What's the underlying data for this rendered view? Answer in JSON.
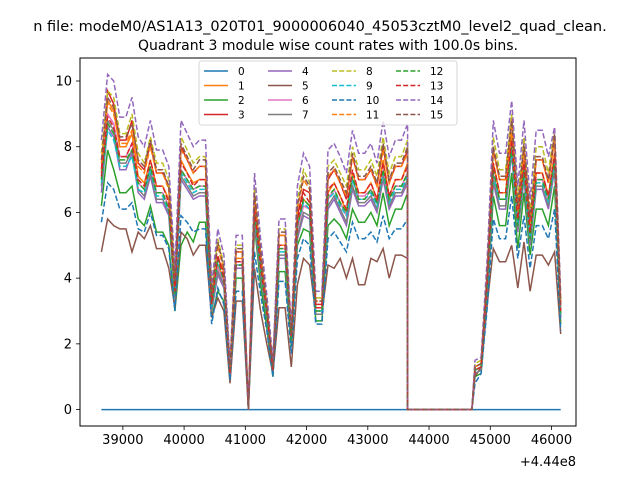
{
  "chart_data": {
    "type": "line",
    "suptitle": "n file: modeM0/AS1A13_020T01_9000006040_45053cztM0_level2_quad_clean.",
    "title": "Quadrant 3 module wise count rates with 100.0s bins.",
    "xlabel": "",
    "ylabel": "",
    "offset_text": "+4.44e8",
    "xlim": [
      38300,
      46400
    ],
    "ylim": [
      -0.5,
      10.7
    ],
    "x_ticks": [
      39000,
      40000,
      41000,
      42000,
      43000,
      44000,
      45000,
      46000
    ],
    "y_ticks": [
      0,
      2,
      4,
      6,
      8,
      10
    ],
    "grid": false,
    "legend_position": "top-center",
    "legend_columns": 4,
    "segments": [
      [
        38650,
        43600
      ],
      [
        44750,
        46100
      ]
    ],
    "series": [
      {
        "name": "0",
        "color": "#1f77b4",
        "dash": "solid",
        "values": [
          0,
          0,
          0,
          0,
          0,
          0,
          0,
          0,
          0,
          0,
          0,
          0,
          0,
          0,
          0,
          0,
          0,
          0,
          0,
          0,
          0,
          0,
          0,
          0,
          0,
          0,
          0,
          0,
          0,
          0,
          0,
          0,
          0,
          0,
          0,
          0,
          0,
          0,
          0,
          0,
          0,
          0,
          0,
          0,
          0,
          0,
          0,
          0,
          0,
          0,
          0,
          0,
          0,
          0,
          0,
          0,
          0,
          0,
          0,
          0,
          0,
          0,
          0,
          0,
          0
        ]
      },
      {
        "name": "1",
        "color": "#ff7f0e",
        "dash": "solid",
        "values": [
          7.2,
          9.4,
          9.1,
          8.0,
          8.4,
          7.1,
          6.9,
          7.6,
          6.8,
          6.4,
          3.6,
          7.6,
          7.2,
          6.9,
          7.0,
          3.2,
          4.4,
          4.0,
          1.1,
          4.6,
          0.0,
          6.1,
          4.4,
          3.0,
          1.2,
          5.0,
          2.2,
          5.6,
          6.4,
          6.2,
          3.1,
          6.6,
          6.9,
          6.5,
          6.0,
          7.2,
          6.6,
          6.9,
          6.4,
          7.6,
          6.5,
          7.0,
          7.5,
          1.2,
          1.3,
          3.9,
          7.5,
          6.6,
          8.4,
          5.8,
          7.6,
          5.4,
          7.2,
          6.5,
          7.8,
          3.0
        ]
      },
      {
        "name": "2",
        "color": "#2ca02c",
        "dash": "solid",
        "values": [
          6.2,
          7.9,
          7.3,
          6.6,
          6.8,
          5.8,
          5.6,
          6.2,
          5.4,
          5.0,
          3.0,
          5.0,
          5.4,
          5.1,
          5.7,
          2.8,
          3.6,
          3.3,
          0.9,
          4.0,
          0.0,
          5.6,
          3.8,
          2.5,
          1.0,
          4.2,
          1.9,
          5.0,
          5.5,
          5.4,
          2.7,
          5.6,
          5.8,
          5.6,
          5.2,
          6.1,
          5.7,
          6.0,
          5.6,
          6.6,
          5.6,
          6.1,
          6.6,
          1.0,
          1.1,
          3.3,
          6.5,
          5.6,
          7.2,
          4.9,
          6.6,
          4.7,
          6.1,
          5.6,
          6.8,
          2.6
        ]
      },
      {
        "name": "3",
        "color": "#d62728",
        "dash": "solid",
        "values": [
          7.3,
          9.7,
          9.3,
          8.2,
          8.8,
          7.5,
          7.3,
          8.1,
          7.2,
          6.8,
          3.8,
          8.0,
          7.6,
          7.2,
          7.4,
          3.4,
          4.6,
          4.2,
          1.2,
          4.8,
          0.0,
          6.5,
          4.7,
          3.1,
          1.3,
          5.3,
          2.3,
          5.9,
          6.7,
          6.6,
          3.2,
          7.0,
          7.3,
          6.9,
          6.4,
          7.7,
          7.0,
          7.3,
          6.8,
          8.0,
          6.9,
          7.4,
          7.9,
          1.3,
          1.4,
          4.1,
          7.9,
          7.0,
          8.9,
          6.1,
          8.0,
          5.7,
          7.6,
          6.9,
          8.3,
          3.2
        ]
      },
      {
        "name": "4",
        "color": "#9467bd",
        "dash": "solid",
        "values": [
          6.6,
          8.6,
          8.3,
          7.3,
          7.8,
          6.6,
          6.4,
          7.1,
          6.3,
          5.9,
          3.4,
          7.0,
          6.7,
          6.4,
          6.5,
          3.0,
          4.1,
          3.7,
          1.0,
          4.3,
          0.0,
          5.7,
          4.1,
          2.8,
          1.1,
          4.6,
          2.0,
          5.2,
          5.9,
          5.8,
          2.9,
          6.1,
          6.4,
          6.0,
          5.6,
          6.7,
          6.2,
          6.4,
          6.0,
          7.0,
          6.1,
          6.5,
          6.9,
          1.1,
          1.2,
          3.6,
          6.9,
          6.1,
          7.8,
          5.4,
          7.0,
          5.0,
          6.7,
          6.1,
          7.3,
          2.8
        ]
      },
      {
        "name": "5",
        "color": "#8c564b",
        "dash": "solid",
        "values": [
          4.8,
          5.8,
          5.6,
          5.5,
          4.8,
          5.4,
          5.2,
          5.6,
          4.9,
          4.3,
          3.1,
          5.4,
          5.2,
          4.7,
          5.0,
          2.8,
          3.4,
          3.0,
          0.8,
          3.3,
          0.0,
          4.3,
          3.0,
          2.0,
          1.1,
          3.1,
          1.3,
          3.8,
          4.6,
          4.4,
          2.9,
          4.4,
          4.3,
          4.6,
          4.0,
          4.6,
          3.8,
          4.6,
          4.5,
          4.9,
          4.0,
          4.7,
          4.6,
          1.0,
          1.3,
          3.2,
          4.9,
          4.5,
          5.0,
          3.7,
          5.1,
          3.6,
          4.7,
          4.4,
          4.8,
          2.3
        ]
      },
      {
        "name": "6",
        "color": "#e377c2",
        "dash": "solid",
        "values": [
          7.0,
          9.0,
          8.7,
          7.7,
          8.1,
          6.9,
          6.7,
          7.4,
          6.6,
          6.2,
          3.5,
          7.3,
          7.0,
          6.7,
          6.8,
          3.1,
          4.3,
          3.9,
          1.1,
          4.5,
          0.0,
          6.0,
          4.3,
          2.9,
          1.2,
          4.9,
          2.1,
          5.5,
          6.2,
          6.1,
          3.0,
          6.4,
          6.7,
          6.3,
          5.9,
          7.0,
          6.5,
          6.7,
          6.3,
          7.3,
          6.4,
          6.8,
          7.2,
          1.2,
          1.3,
          3.8,
          7.2,
          6.4,
          8.1,
          5.6,
          7.3,
          5.2,
          7.0,
          6.4,
          7.6,
          2.9
        ]
      },
      {
        "name": "7",
        "color": "#7f7f7f",
        "dash": "solid",
        "values": [
          6.8,
          8.8,
          8.5,
          7.5,
          7.9,
          6.7,
          6.5,
          7.2,
          6.4,
          6.0,
          3.4,
          7.1,
          6.8,
          6.5,
          6.6,
          3.0,
          4.2,
          3.8,
          1.0,
          4.4,
          0.0,
          5.8,
          4.2,
          2.8,
          1.1,
          4.7,
          2.0,
          5.3,
          6.0,
          5.9,
          2.9,
          6.2,
          6.5,
          6.1,
          5.7,
          6.8,
          6.3,
          6.5,
          6.1,
          7.1,
          6.2,
          6.6,
          7.0,
          1.1,
          1.2,
          3.7,
          7.0,
          6.2,
          7.9,
          5.5,
          7.1,
          5.1,
          6.8,
          6.2,
          7.4,
          2.8
        ]
      },
      {
        "name": "8",
        "color": "#bcbd22",
        "dash": "dashed",
        "values": [
          7.8,
          9.7,
          9.5,
          8.4,
          9.0,
          7.8,
          7.5,
          8.3,
          7.5,
          7.0,
          4.0,
          8.3,
          7.9,
          7.5,
          7.7,
          3.6,
          5.2,
          4.4,
          1.3,
          5.0,
          0.0,
          6.8,
          4.9,
          3.3,
          1.4,
          5.5,
          2.4,
          6.4,
          7.3,
          6.9,
          3.4,
          7.4,
          7.6,
          7.2,
          6.8,
          8.0,
          7.3,
          7.6,
          7.1,
          8.3,
          7.2,
          7.7,
          8.2,
          1.4,
          1.5,
          4.3,
          8.3,
          7.3,
          9.0,
          6.4,
          8.3,
          6.0,
          8.0,
          7.2,
          8.6,
          3.3
        ]
      },
      {
        "name": "9",
        "color": "#17becf",
        "dash": "dashed",
        "values": [
          6.9,
          8.5,
          8.2,
          7.4,
          7.7,
          6.7,
          6.6,
          7.3,
          6.5,
          6.0,
          3.5,
          7.2,
          6.9,
          6.6,
          6.7,
          3.1,
          4.5,
          3.9,
          1.1,
          4.4,
          0.0,
          5.9,
          4.3,
          2.9,
          1.2,
          4.8,
          2.1,
          5.6,
          6.3,
          6.1,
          3.0,
          6.4,
          6.6,
          6.2,
          5.9,
          7.0,
          6.4,
          6.6,
          6.2,
          7.2,
          6.3,
          6.7,
          7.1,
          1.2,
          1.3,
          3.8,
          7.1,
          6.4,
          7.9,
          5.6,
          7.2,
          5.2,
          6.9,
          6.3,
          7.5,
          2.9
        ]
      },
      {
        "name": "10",
        "color": "#1f77b4",
        "dash": "dashed",
        "values": [
          5.7,
          6.9,
          6.7,
          6.1,
          6.3,
          5.5,
          5.4,
          6.0,
          5.3,
          4.9,
          3.0,
          5.9,
          5.7,
          5.4,
          5.5,
          2.6,
          3.7,
          3.2,
          0.9,
          3.6,
          0.0,
          4.8,
          3.5,
          2.4,
          1.0,
          3.9,
          1.7,
          4.6,
          5.2,
          5.0,
          2.6,
          5.2,
          5.4,
          5.1,
          4.8,
          5.7,
          5.2,
          5.4,
          5.1,
          5.9,
          5.2,
          5.5,
          5.8,
          0.8,
          1.1,
          3.1,
          5.8,
          5.2,
          6.5,
          4.6,
          5.9,
          4.3,
          5.6,
          5.2,
          6.1,
          2.4
        ]
      },
      {
        "name": "11",
        "color": "#ff7f0e",
        "dash": "dashed",
        "values": [
          7.5,
          9.3,
          9.0,
          8.1,
          8.5,
          7.4,
          7.2,
          8.0,
          7.2,
          6.7,
          3.8,
          7.9,
          7.6,
          7.2,
          7.4,
          3.4,
          5.0,
          4.2,
          1.2,
          4.8,
          0.0,
          6.5,
          4.7,
          3.2,
          1.3,
          5.3,
          2.3,
          6.1,
          7.0,
          6.7,
          3.3,
          7.1,
          7.3,
          6.9,
          6.5,
          7.7,
          7.0,
          7.3,
          6.8,
          7.9,
          6.9,
          7.4,
          7.8,
          1.3,
          1.4,
          4.1,
          7.9,
          7.0,
          8.6,
          6.1,
          7.9,
          5.7,
          7.6,
          6.9,
          8.2,
          3.2
        ]
      },
      {
        "name": "12",
        "color": "#2ca02c",
        "dash": "dashed",
        "values": [
          7.0,
          8.7,
          8.4,
          7.6,
          7.9,
          6.9,
          6.7,
          7.4,
          6.6,
          6.1,
          3.5,
          7.3,
          7.0,
          6.7,
          6.8,
          3.2,
          4.6,
          3.9,
          1.1,
          4.4,
          0.0,
          6.0,
          4.3,
          2.9,
          1.2,
          4.9,
          2.1,
          5.6,
          6.4,
          6.2,
          3.0,
          6.5,
          6.7,
          6.3,
          6.0,
          7.1,
          6.4,
          6.7,
          6.3,
          7.3,
          6.4,
          6.8,
          7.2,
          1.2,
          1.3,
          3.8,
          7.3,
          6.4,
          8.0,
          5.6,
          7.3,
          5.2,
          7.0,
          6.4,
          7.6,
          2.9
        ]
      },
      {
        "name": "13",
        "color": "#d62728",
        "dash": "dashed",
        "values": [
          7.1,
          8.9,
          8.6,
          7.7,
          8.1,
          7.0,
          6.8,
          7.6,
          6.8,
          6.3,
          3.6,
          7.5,
          7.2,
          6.8,
          7.0,
          3.2,
          4.7,
          4.0,
          1.1,
          4.5,
          0.0,
          6.1,
          4.4,
          3.0,
          1.2,
          5.0,
          2.2,
          5.7,
          6.6,
          6.3,
          3.1,
          6.7,
          6.9,
          6.5,
          6.1,
          7.3,
          6.6,
          6.9,
          6.4,
          7.5,
          6.5,
          7.0,
          7.4,
          1.2,
          1.3,
          3.9,
          7.5,
          6.6,
          8.2,
          5.8,
          7.5,
          5.4,
          7.2,
          6.5,
          7.8,
          3.0
        ]
      },
      {
        "name": "14",
        "color": "#9467bd",
        "dash": "dashed",
        "values": [
          8.2,
          10.2,
          10.0,
          8.9,
          9.5,
          8.3,
          8.0,
          8.8,
          7.9,
          7.4,
          4.3,
          8.8,
          8.4,
          8.0,
          8.2,
          3.8,
          5.5,
          4.7,
          1.4,
          5.3,
          0.0,
          7.2,
          5.2,
          3.5,
          1.5,
          5.8,
          2.5,
          6.8,
          7.8,
          7.4,
          3.6,
          7.9,
          8.1,
          7.7,
          7.2,
          8.5,
          7.8,
          8.1,
          7.5,
          8.8,
          7.7,
          8.2,
          8.7,
          1.5,
          1.6,
          4.6,
          8.8,
          7.8,
          9.4,
          6.8,
          8.8,
          6.4,
          8.5,
          7.7,
          8.6,
          3.5
        ]
      },
      {
        "name": "15",
        "color": "#8c564b",
        "dash": "dashed",
        "values": [
          7.6,
          9.5,
          9.2,
          8.3,
          8.7,
          7.6,
          7.4,
          8.2,
          7.3,
          6.8,
          3.9,
          8.1,
          7.7,
          7.3,
          7.6,
          3.5,
          5.1,
          4.3,
          1.2,
          4.9,
          0.0,
          6.6,
          4.8,
          3.2,
          1.3,
          5.4,
          2.3,
          6.2,
          7.1,
          6.8,
          3.3,
          7.2,
          7.4,
          7.0,
          6.6,
          7.8,
          7.1,
          7.4,
          6.9,
          8.1,
          7.0,
          7.5,
          8.0,
          1.3,
          1.4,
          4.2,
          8.0,
          7.1,
          8.8,
          6.2,
          8.1,
          5.8,
          7.7,
          7.0,
          8.4,
          3.2
        ]
      }
    ]
  }
}
